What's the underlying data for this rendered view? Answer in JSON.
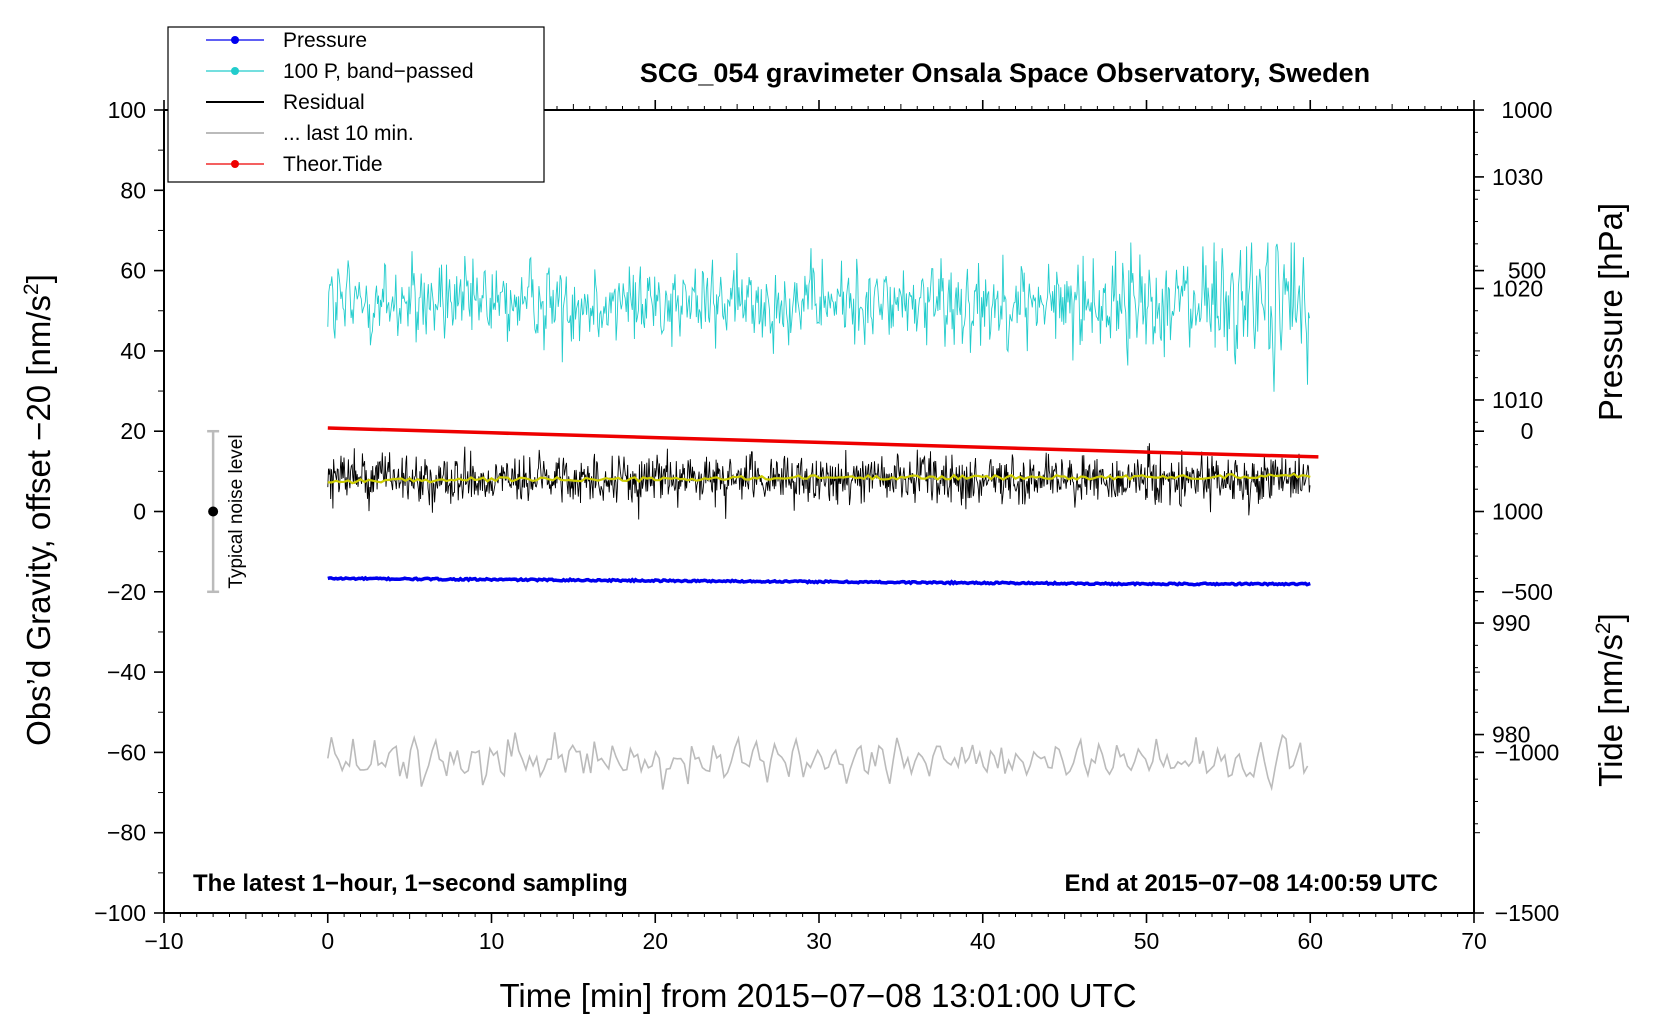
{
  "chart_data": {
    "type": "line",
    "title": "SCG_054 gravimeter Onsala Space Observatory, Sweden",
    "xlabel": "Time [min] from 2015−07−08 13:01:00 UTC",
    "ylabel": "Obs’d Gravity, offset −20 [nm/s",
    "ylabel_sup": "2",
    "ylabel_close": "]",
    "y2label": "Pressure [hPa]",
    "y3label": "Tide [nm/s",
    "y3label_sup": "2",
    "y3label_close": "]",
    "xlim": [
      -10,
      70
    ],
    "ylim": [
      -100,
      100
    ],
    "pressure_axis_range": [
      964,
      1036
    ],
    "tide_axis_range": [
      -1500,
      1000
    ],
    "grid": false,
    "legend_position": "top-left",
    "x_ticks": [
      -10,
      0,
      10,
      20,
      30,
      40,
      50,
      60,
      70
    ],
    "x_tick_labels": [
      "−10",
      "0",
      "10",
      "20",
      "30",
      "40",
      "50",
      "60",
      "70"
    ],
    "y_ticks": [
      100,
      80,
      60,
      40,
      20,
      0,
      -20,
      -40,
      -60,
      -80,
      -100
    ],
    "y_tick_labels": [
      "100",
      "80",
      "60",
      "40",
      "20",
      "0",
      "−20",
      "−40",
      "−60",
      "−80",
      "−100"
    ],
    "pressure_ticks": [
      1030,
      1020,
      1010,
      1000,
      990,
      980
    ],
    "pressure_tick_labels": [
      "1030",
      "1020",
      "1010",
      "1000",
      "990",
      "980"
    ],
    "tide_ticks": [
      1000,
      500,
      0,
      -500,
      -1000,
      -1500
    ],
    "tide_tick_labels": [
      "1000",
      "500",
      "0",
      "−500",
      "−1000",
      "−1500"
    ],
    "legend": [
      {
        "label": "Pressure",
        "color": "#0000ee",
        "marker": true
      },
      {
        "label": "100 P, band−passed",
        "color": "#22cccc",
        "marker": true
      },
      {
        "label": "Residual",
        "color": "#000000",
        "marker": false
      },
      {
        "label": "... last 10 min.",
        "color": "#bbbbbb",
        "marker": false
      },
      {
        "label": "Theor.Tide",
        "color": "#ee0000",
        "marker": true
      }
    ],
    "series": [
      {
        "name": "Pressure",
        "axis": "pressure_hPa",
        "color": "#0000ee",
        "x": [
          0,
          10,
          20,
          30,
          40,
          50,
          60
        ],
        "values": [
          994.0,
          993.9,
          993.8,
          993.7,
          993.6,
          993.5,
          993.5
        ]
      },
      {
        "name": "100 P, band−passed",
        "axis": "gravity_nm_s2",
        "color": "#22cccc",
        "x_range": [
          0,
          60
        ],
        "center": 52,
        "typical_amplitude": 6,
        "max": 67,
        "min": 21
      },
      {
        "name": "Residual",
        "axis": "gravity_nm_s2",
        "color": "#000000",
        "x_range": [
          0,
          60
        ],
        "center": 8,
        "typical_amplitude": 4,
        "max": 20,
        "min": -2
      },
      {
        "name": "Residual smoothed",
        "axis": "gravity_nm_s2",
        "color": "#cccc00",
        "x": [
          0,
          10,
          20,
          30,
          40,
          50,
          60
        ],
        "values": [
          7.5,
          8,
          8,
          8.5,
          8.5,
          8.5,
          9
        ]
      },
      {
        "name": "... last 10 min.",
        "axis": "gravity_nm_s2",
        "color": "#bbbbbb",
        "x_range": [
          0,
          60
        ],
        "center": -62,
        "typical_amplitude": 3.5,
        "max": -55,
        "min": -70
      },
      {
        "name": "Theor.Tide",
        "axis": "tide_nm_s2",
        "color": "#ee0000",
        "x": [
          0,
          10,
          20,
          30,
          40,
          50,
          60.5
        ],
        "values": [
          10,
          -5,
          -20,
          -35,
          -50,
          -65,
          -80
        ]
      }
    ],
    "noise_bar": {
      "label": "Typical noise level",
      "x": -7,
      "center": 0,
      "low": -20,
      "high": 20
    },
    "annotations": {
      "bottom_left": "The latest 1−hour, 1−second sampling",
      "bottom_right": "End at 2015−07−08 14:00:59 UTC"
    }
  }
}
